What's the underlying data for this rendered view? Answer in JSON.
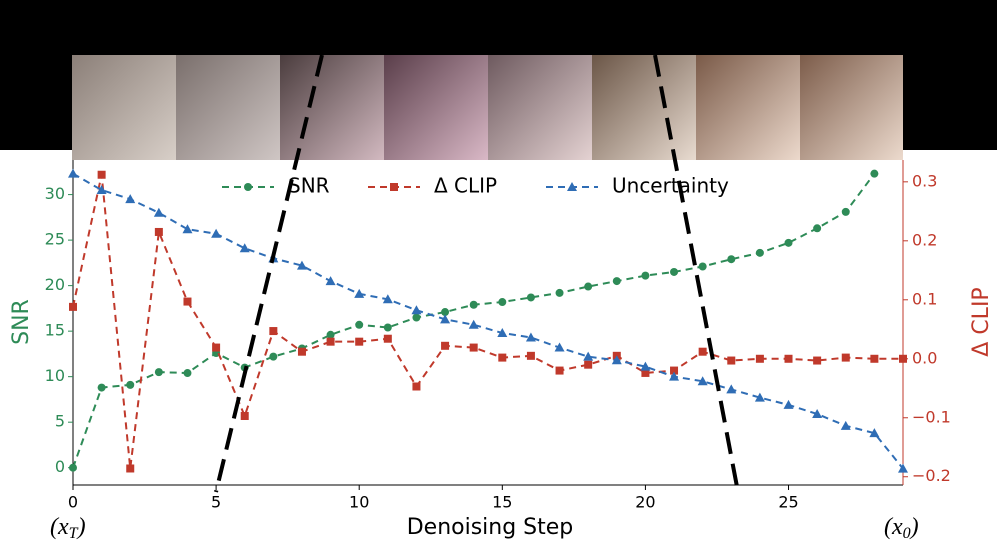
{
  "chart_data": {
    "type": "line",
    "x": [
      0,
      1,
      2,
      3,
      4,
      5,
      6,
      7,
      8,
      9,
      10,
      11,
      12,
      13,
      14,
      15,
      16,
      17,
      18,
      19,
      20,
      21,
      22,
      23,
      24,
      25,
      26,
      27,
      28,
      29
    ],
    "xlabel": "Denoising Step",
    "ylabel": "SNR",
    "y2label": "Δ CLIP",
    "xlim": [
      0,
      29
    ],
    "xticks": [
      0,
      5,
      10,
      15,
      20,
      25
    ],
    "ylim": [
      -1.9,
      33.8
    ],
    "yticks": [
      0,
      5,
      10,
      15,
      20,
      25,
      30
    ],
    "y2lim": [
      -0.214,
      0.337
    ],
    "y2ticks": [
      {
        "value": -0.2,
        "label": "−0.2"
      },
      {
        "value": -0.1,
        "label": "−0.1"
      },
      {
        "value": 0,
        "label": "0.0"
      },
      {
        "value": 0.1,
        "label": "0.1"
      },
      {
        "value": 0.2,
        "label": "0.2"
      },
      {
        "value": 0.3,
        "label": "0.3"
      }
    ],
    "ycolor": "#2e8b57",
    "y2color": "#c0392b",
    "linestyle": "dashed",
    "series": [
      {
        "name": "SNR",
        "color": "#2e8b57",
        "marker": "circle",
        "values": [
          0,
          8.8,
          9.1,
          10.5,
          10.4,
          12.6,
          11.0,
          12.2,
          13.1,
          14.6,
          15.7,
          15.4,
          16.5,
          17.1,
          17.9,
          18.2,
          18.7,
          19.2,
          19.9,
          20.5,
          21.1,
          21.5,
          22.1,
          22.9,
          23.6,
          24.7,
          26.3,
          28.1,
          32.3,
          null
        ]
      },
      {
        "name": "Δ CLIP",
        "color": "#c0392b",
        "marker": "square",
        "axis": "y2",
        "values": [
          0.088,
          0.312,
          -0.186,
          0.215,
          0.097,
          0.019,
          -0.097,
          0.047,
          0.012,
          0.029,
          0.029,
          0.034,
          -0.047,
          0.022,
          0.019,
          0.002,
          0.005,
          -0.02,
          -0.01,
          0.005,
          -0.024,
          -0.02,
          0.012,
          -0.003,
          0,
          0,
          -0.003,
          0.002,
          0,
          0
        ]
      },
      {
        "name": "Uncertainty",
        "color": "#2f6db5",
        "marker": "triangle",
        "values": [
          32.3,
          30.5,
          29.5,
          28.0,
          26.2,
          25.7,
          24.1,
          23.0,
          22.2,
          20.5,
          19.1,
          18.5,
          17.3,
          16.3,
          15.7,
          14.8,
          14.3,
          13.2,
          12.2,
          11.8,
          11.1,
          10.0,
          9.5,
          8.6,
          7.7,
          6.9,
          5.9,
          4.6,
          3.8,
          -0.1
        ]
      }
    ],
    "annotations": [
      {
        "prefix": "(x",
        "sub": "T",
        "suffix": ")"
      },
      {
        "prefix": "(x",
        "sub": "0",
        "suffix": ")"
      }
    ]
  }
}
